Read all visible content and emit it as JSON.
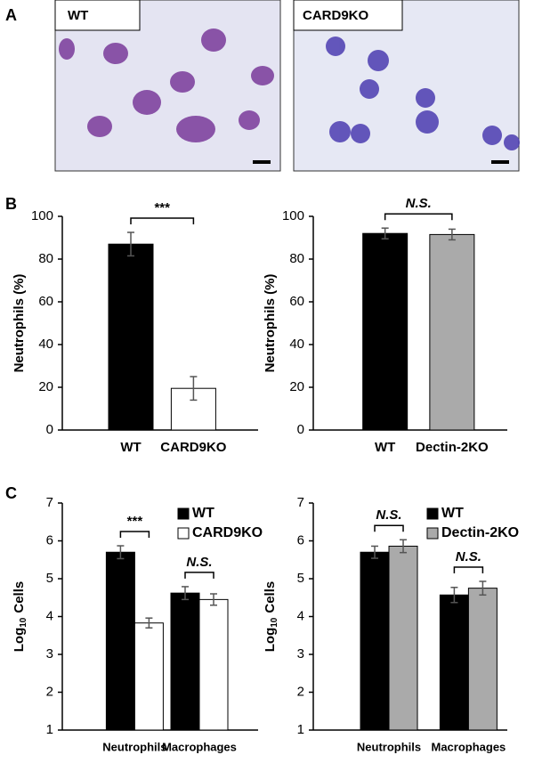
{
  "panels": {
    "a": "A",
    "b": "B",
    "c": "C"
  },
  "images": [
    {
      "label": "WT"
    },
    {
      "label": "CARD9KO"
    }
  ],
  "chart_data": [
    {
      "type": "bar",
      "y_label": "Neutrophils (%)",
      "categories": [
        "WT",
        "CARD9KO"
      ],
      "values": [
        87,
        19.5
      ],
      "errors": [
        5.5,
        5.5
      ],
      "colors": [
        "#000000",
        "#ffffff"
      ],
      "annotation": "***",
      "ylim": [
        0,
        100
      ],
      "yticks": [
        0,
        20,
        40,
        60,
        80,
        100
      ]
    },
    {
      "type": "bar",
      "y_label": "Neutrophils (%)",
      "categories": [
        "WT",
        "Dectin-2KO"
      ],
      "values": [
        92,
        91.5
      ],
      "errors": [
        2.5,
        2.5
      ],
      "colors": [
        "#000000",
        "#aaaaaa"
      ],
      "annotation": "N.S.",
      "ylim": [
        0,
        100
      ],
      "yticks": [
        0,
        20,
        40,
        60,
        80,
        100
      ]
    },
    {
      "type": "bar",
      "y_label": {
        "base": "Log",
        "subscript": "10",
        "text": "Cells"
      },
      "categories": [
        "Neutrophils",
        "Macrophages"
      ],
      "series": [
        {
          "name": "WT",
          "color": "#000000",
          "values": [
            5.7,
            4.62
          ],
          "errors": [
            0.17,
            0.17
          ]
        },
        {
          "name": "CARD9KO",
          "color": "#ffffff",
          "values": [
            3.83,
            4.45
          ],
          "errors": [
            0.13,
            0.15
          ]
        }
      ],
      "annotations": [
        "***",
        "N.S."
      ],
      "legend": "top right",
      "ylim": [
        1,
        7
      ],
      "yticks": [
        1,
        2,
        3,
        4,
        5,
        6,
        7
      ]
    },
    {
      "type": "bar",
      "y_label": {
        "base": "Log",
        "subscript": "10",
        "text": "Cells"
      },
      "categories": [
        "Neutrophils",
        "Macrophages"
      ],
      "series": [
        {
          "name": "WT",
          "color": "#000000",
          "values": [
            5.7,
            4.57
          ],
          "errors": [
            0.16,
            0.2
          ]
        },
        {
          "name": "Dectin-2KO",
          "color": "#aaaaaa",
          "values": [
            5.86,
            4.75
          ],
          "errors": [
            0.17,
            0.18
          ]
        }
      ],
      "annotations": [
        "N.S.",
        "N.S."
      ],
      "legend": "top right",
      "ylim": [
        1,
        7
      ],
      "yticks": [
        1,
        2,
        3,
        4,
        5,
        6,
        7
      ]
    }
  ]
}
